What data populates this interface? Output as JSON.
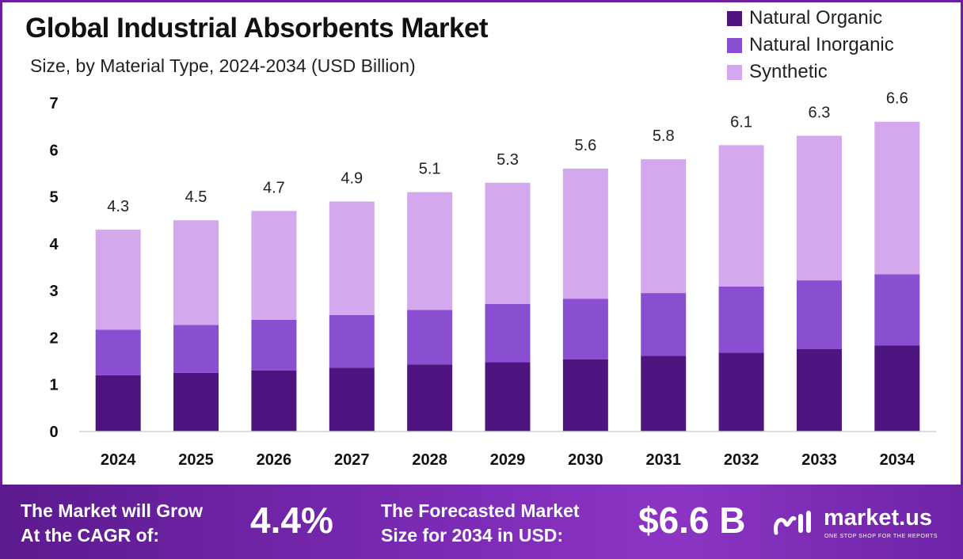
{
  "chart_data": {
    "type": "bar",
    "stacked": true,
    "title": "Global Industrial Absorbents Market",
    "subtitle": "Size, by Material Type, 2024-2034 (USD Billion)",
    "categories": [
      "2024",
      "2025",
      "2026",
      "2027",
      "2028",
      "2029",
      "2030",
      "2031",
      "2032",
      "2033",
      "2034"
    ],
    "series": [
      {
        "name": "Natural Organic",
        "color": "#4e1480",
        "values": [
          1.2,
          1.25,
          1.3,
          1.36,
          1.43,
          1.48,
          1.54,
          1.61,
          1.68,
          1.76,
          1.83
        ]
      },
      {
        "name": "Natural Inorganic",
        "color": "#8a4fd0",
        "values": [
          0.97,
          1.02,
          1.08,
          1.12,
          1.16,
          1.24,
          1.29,
          1.34,
          1.41,
          1.46,
          1.52
        ]
      },
      {
        "name": "Synthetic",
        "color": "#d3a8ec",
        "values": [
          2.13,
          2.23,
          2.32,
          2.42,
          2.51,
          2.58,
          2.77,
          2.85,
          3.01,
          3.08,
          3.25
        ]
      }
    ],
    "totals": [
      4.3,
      4.5,
      4.7,
      4.9,
      5.1,
      5.3,
      5.6,
      5.8,
      6.1,
      6.3,
      6.6
    ],
    "total_labels": [
      "4.3",
      "4.5",
      "4.7",
      "4.9",
      "5.1",
      "5.3",
      "5.6",
      "5.8",
      "6.1",
      "6.3",
      "6.6"
    ],
    "ylim": [
      0,
      7
    ],
    "yticks": [
      "0",
      "1",
      "2",
      "3",
      "4",
      "5",
      "6",
      "7"
    ],
    "xlabel": "",
    "ylabel": "",
    "grid": false,
    "legend_position": "top-right"
  },
  "footer": {
    "cagr_label_line1": "The Market will Grow",
    "cagr_label_line2": "At the CAGR of:",
    "cagr_value": "4.4%",
    "forecast_label_line1": "The Forecasted Market",
    "forecast_label_line2": "Size for 2034 in USD:",
    "forecast_value": "$6.6 B",
    "brand_name": "market.us",
    "brand_tagline": "ONE STOP SHOP FOR THE REPORTS"
  },
  "colors": {
    "accent": "#6b1fa0",
    "footer_gradient_start": "#5c1a8f",
    "footer_gradient_end": "#8c35c4"
  }
}
